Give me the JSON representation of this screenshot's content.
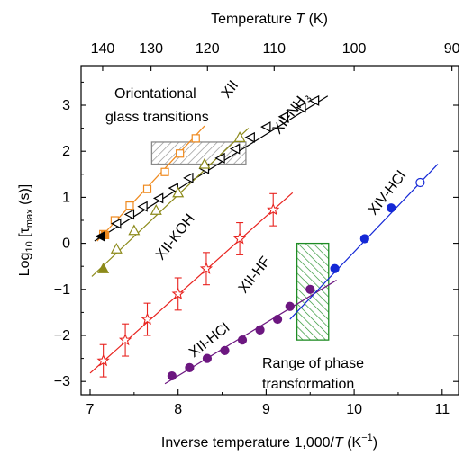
{
  "chart_data": {
    "type": "scatter",
    "xlabel_prefix": "Inverse temperature 1,000/",
    "xlabel_italic": "T",
    "xlabel_unit_open": " (K",
    "xlabel_unit_exp": "−1",
    "xlabel_unit_close": ")",
    "ylabel_prefix": "Log",
    "ylabel_sub10": "10",
    "ylabel_mid": " [τ",
    "ylabel_sub": "max",
    "ylabel_suffix": " (s)]",
    "top_xlabel_prefix": "Temperature ",
    "top_xlabel_italic": "T",
    "top_xlabel_suffix": " (K)",
    "xlim": [
      6.9,
      11.2
    ],
    "ylim": [
      -3.3,
      3.75
    ],
    "xticks": [
      "7",
      "8",
      "9",
      "10",
      "11"
    ],
    "yticks": [
      "−3",
      "−2",
      "−1",
      "0",
      "1",
      "2",
      "3"
    ],
    "top_ticks": [
      "140",
      "130",
      "120",
      "110",
      "100",
      "90"
    ],
    "top_tick_values": [
      140,
      130,
      120,
      110,
      100,
      90
    ],
    "colors": {
      "XII": "#ef8a1e",
      "XII-NH3": "#000000",
      "XII-KOH": "#8c8a1a",
      "XII-HF": "#e8231f",
      "XII-HCl": "#6c1780",
      "XIV-HCl": "#1428d6",
      "range": "#1e8c24",
      "orientational": "#8a8a8a"
    },
    "annotations": {
      "orientational": "Orientational glass transitions",
      "orientational_line1": "Orientational",
      "orientational_line2": "glass transitions",
      "range_line1": "Range of phase",
      "range_line2": "transformation"
    },
    "series": [
      {
        "name": "XII",
        "label": "XII",
        "marker": "square-open",
        "points": [
          [
            7.15,
            0.2
          ],
          [
            7.28,
            0.5
          ],
          [
            7.45,
            0.82
          ],
          [
            7.65,
            1.18
          ],
          [
            7.85,
            1.55
          ],
          [
            8.02,
            1.95
          ],
          [
            8.2,
            2.28
          ]
        ],
        "filled_points": [
          [
            7.17,
            0.18
          ]
        ],
        "fit": [
          [
            7.08,
            0.05
          ],
          [
            8.3,
            2.55
          ]
        ]
      },
      {
        "name": "XII-NH3",
        "label": "XII-NH",
        "label_sub": "3",
        "marker": "triangle-left-open",
        "points": [
          [
            7.3,
            0.43
          ],
          [
            7.45,
            0.63
          ],
          [
            7.6,
            0.8
          ],
          [
            7.78,
            0.98
          ],
          [
            7.95,
            1.2
          ],
          [
            8.12,
            1.42
          ],
          [
            8.3,
            1.62
          ],
          [
            8.48,
            1.85
          ],
          [
            8.65,
            2.05
          ],
          [
            8.82,
            2.3
          ],
          [
            9.0,
            2.53
          ],
          [
            9.2,
            2.75
          ],
          [
            9.4,
            2.95
          ],
          [
            9.55,
            3.1
          ]
        ],
        "filled_points": [
          [
            7.12,
            0.15
          ]
        ],
        "fit": [
          [
            7.05,
            0.05
          ],
          [
            9.7,
            3.2
          ]
        ]
      },
      {
        "name": "XII-KOH",
        "label": "XII-KOH",
        "marker": "triangle-up-open",
        "points": [
          [
            7.3,
            -0.12
          ],
          [
            7.5,
            0.28
          ],
          [
            7.75,
            0.72
          ],
          [
            8.0,
            1.1
          ],
          [
            8.3,
            1.72
          ],
          [
            8.7,
            2.3
          ]
        ],
        "filled_points": [
          [
            7.15,
            -0.55
          ]
        ],
        "fit": [
          [
            7.02,
            -0.72
          ],
          [
            8.8,
            2.5
          ]
        ]
      },
      {
        "name": "XII-HF",
        "label": "XII-HF",
        "marker": "star-open",
        "points": [
          [
            7.15,
            -2.55
          ],
          [
            7.4,
            -2.1
          ],
          [
            7.65,
            -1.65
          ],
          [
            8.0,
            -1.1
          ],
          [
            8.32,
            -0.55
          ],
          [
            8.7,
            0.1
          ],
          [
            9.08,
            0.73
          ]
        ],
        "err": [
          0.35,
          0.35,
          0.35,
          0.35,
          0.35,
          0.35,
          0.35
        ],
        "fit": [
          [
            7.0,
            -2.82
          ],
          [
            9.3,
            1.1
          ]
        ]
      },
      {
        "name": "XII-HCl",
        "label": "XII-HCl",
        "marker": "circle",
        "points": [
          [
            7.93,
            -2.88
          ],
          [
            8.13,
            -2.7
          ],
          [
            8.33,
            -2.5
          ],
          [
            8.53,
            -2.33
          ],
          [
            8.73,
            -2.1
          ],
          [
            8.93,
            -1.88
          ],
          [
            9.13,
            -1.65
          ],
          [
            9.27,
            -1.37
          ],
          [
            9.5,
            -1.0
          ]
        ],
        "fit": [
          [
            7.85,
            -3.05
          ],
          [
            9.8,
            -0.8
          ]
        ]
      },
      {
        "name": "XIV-HCl",
        "label": "XIV-HCl",
        "marker": "circle",
        "points": [
          [
            9.78,
            -0.55
          ],
          [
            10.12,
            0.1
          ],
          [
            10.42,
            0.77
          ]
        ],
        "open_points": [
          [
            10.75,
            1.32
          ]
        ],
        "fit": [
          [
            9.27,
            -1.65
          ],
          [
            10.95,
            1.72
          ]
        ]
      }
    ],
    "hatched_regions": [
      {
        "name": "orientational-glass-box",
        "x": [
          7.7,
          8.77
        ],
        "y": [
          1.72,
          2.2
        ]
      },
      {
        "name": "phase-transformation-box",
        "x": [
          9.35,
          9.71
        ],
        "y": [
          -2.1,
          0.0
        ]
      }
    ]
  }
}
